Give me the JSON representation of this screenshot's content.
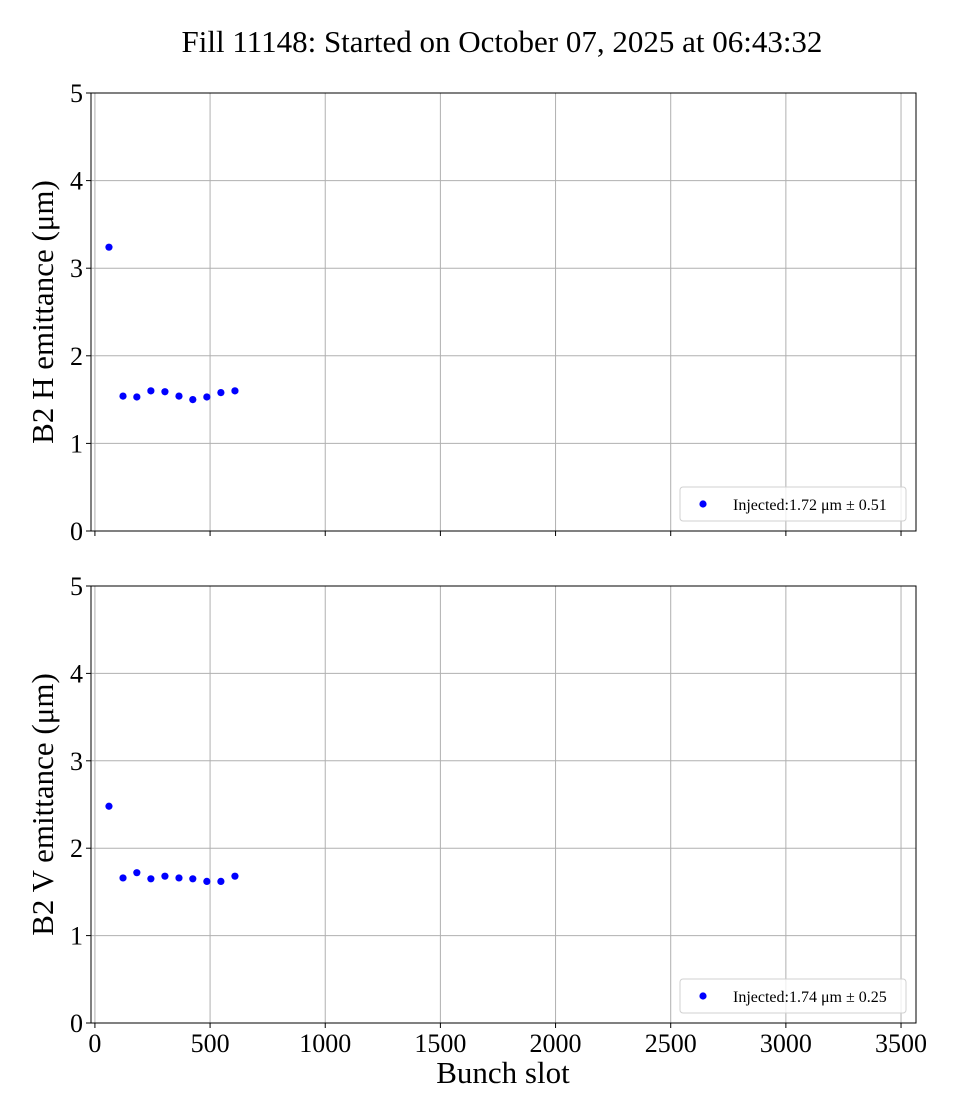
{
  "chart_data": {
    "type": "scatter",
    "title": "Fill 11148: Started on October 07, 2025 at 06:43:32",
    "xlabel": "Bunch slot",
    "xlim": [
      -17,
      3565
    ],
    "xticks": [
      0,
      500,
      1000,
      1500,
      2000,
      2500,
      3000,
      3500
    ],
    "grid": true,
    "marker_color": "#0000ff",
    "panels": [
      {
        "ylabel": "B2 H emittance (μm)",
        "ylim": [
          0,
          5
        ],
        "yticks": [
          0,
          1,
          2,
          3,
          4,
          5
        ],
        "legend_placement": "lower-right",
        "series": [
          {
            "name": "Injected:1.72 μm ± 0.51",
            "x": [
              61,
              122,
              182,
              243,
              304,
              365,
              425,
              486,
              547,
              608
            ],
            "y": [
              3.24,
              1.54,
              1.53,
              1.6,
              1.59,
              1.54,
              1.5,
              1.53,
              1.58,
              1.6
            ]
          }
        ]
      },
      {
        "ylabel": "B2 V emittance (μm)",
        "ylim": [
          0,
          5
        ],
        "yticks": [
          0,
          1,
          2,
          3,
          4,
          5
        ],
        "legend_placement": "lower-right",
        "series": [
          {
            "name": "Injected:1.74 μm ± 0.25",
            "x": [
              61,
              122,
              182,
              243,
              304,
              365,
              425,
              486,
              547,
              608
            ],
            "y": [
              2.48,
              1.66,
              1.72,
              1.65,
              1.68,
              1.66,
              1.65,
              1.62,
              1.62,
              1.68
            ]
          }
        ]
      }
    ]
  }
}
